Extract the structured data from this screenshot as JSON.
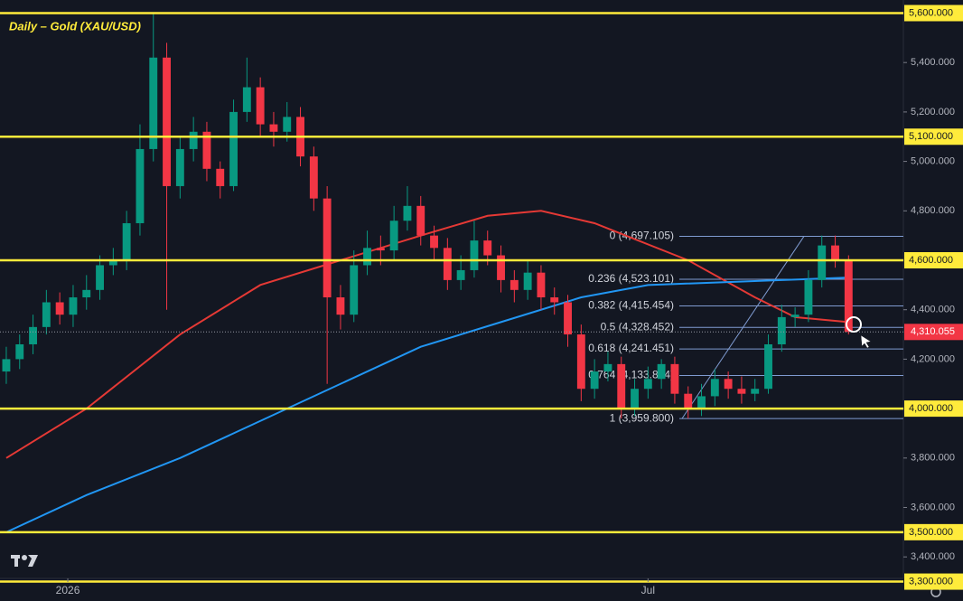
{
  "chart_data": {
    "type": "candlestick",
    "title": "Daily – Gold (XAU/USD)",
    "xlim": [
      -0.47,
      67.1
    ],
    "xticks": [
      {
        "value": 4.6,
        "label": "2026"
      },
      {
        "value": 48,
        "label": "Jul"
      }
    ],
    "ylim": [
      3313,
      5653
    ],
    "yticks": [
      {
        "value": 5400,
        "label": "5,400.000"
      },
      {
        "value": 5200,
        "label": "5,200.000"
      },
      {
        "value": 5000,
        "label": "5,000.000"
      },
      {
        "value": 4800,
        "label": "4,800.000"
      },
      {
        "value": 4400,
        "label": "4,400.000"
      },
      {
        "value": 4200,
        "label": "4,200.000"
      },
      {
        "value": 3800,
        "label": "3,800.000"
      },
      {
        "value": 3600,
        "label": "3,600.000"
      },
      {
        "value": 3400,
        "label": "3,400.000"
      }
    ],
    "up_color": "#089981",
    "down_color": "#f23645",
    "open": [
      4150,
      4200,
      4260,
      4330,
      4430,
      4380,
      4450,
      4480,
      4580,
      4600,
      4750,
      5050,
      5420,
      4900,
      5050,
      5120,
      4970,
      4900,
      5200,
      5300,
      5150,
      5120,
      5180,
      5020,
      4850,
      4450,
      4380,
      4580,
      4650,
      4640,
      4760,
      4820,
      4700,
      4650,
      4520,
      4560,
      4680,
      4620,
      4520,
      4480,
      4550,
      4450,
      4430,
      4300,
      4080,
      4150,
      4180,
      4000,
      4080,
      4120,
      4180,
      4060,
      4000,
      4050,
      4120,
      4080,
      4060,
      4080,
      4260,
      4370,
      4380,
      4520,
      4660,
      4600
    ],
    "high": [
      4250,
      4300,
      4380,
      4480,
      4470,
      4500,
      4540,
      4620,
      4650,
      4800,
      5150,
      5600,
      5480,
      5100,
      5180,
      5160,
      5000,
      5250,
      5420,
      5340,
      5200,
      5240,
      5220,
      5060,
      4900,
      4500,
      4640,
      4720,
      4700,
      4820,
      4900,
      4860,
      4740,
      4690,
      4620,
      4760,
      4720,
      4660,
      4560,
      4600,
      4580,
      4490,
      4460,
      4340,
      4200,
      4230,
      4210,
      4120,
      4170,
      4200,
      4210,
      4090,
      4100,
      4160,
      4150,
      4130,
      4120,
      4300,
      4420,
      4410,
      4560,
      4700,
      4700,
      4620
    ],
    "low": [
      4100,
      4160,
      4220,
      4300,
      4340,
      4330,
      4400,
      4440,
      4540,
      4560,
      4700,
      5000,
      4400,
      4850,
      5000,
      4920,
      4850,
      4880,
      5160,
      5100,
      5060,
      5080,
      4980,
      4800,
      4100,
      4320,
      4350,
      4540,
      4580,
      4600,
      4720,
      4660,
      4600,
      4480,
      4480,
      4530,
      4580,
      4470,
      4430,
      4440,
      4400,
      4380,
      4250,
      4030,
      4040,
      4110,
      3960,
      3970,
      4040,
      4080,
      4020,
      3960,
      3970,
      4010,
      4040,
      4020,
      4030,
      4060,
      4230,
      4330,
      4350,
      4490,
      4570,
      4300
    ],
    "close": [
      4200,
      4260,
      4330,
      4430,
      4380,
      4450,
      4480,
      4580,
      4600,
      4750,
      5050,
      5420,
      4900,
      5050,
      5120,
      4970,
      4900,
      5200,
      5300,
      5150,
      5120,
      5180,
      5020,
      4850,
      4450,
      4380,
      4580,
      4650,
      4640,
      4760,
      4820,
      4700,
      4650,
      4520,
      4560,
      4680,
      4620,
      4520,
      4480,
      4550,
      4450,
      4430,
      4300,
      4080,
      4150,
      4180,
      4000,
      4080,
      4120,
      4180,
      4060,
      4000,
      4050,
      4120,
      4080,
      4060,
      4080,
      4260,
      4370,
      4380,
      4520,
      4660,
      4600,
      4310
    ],
    "series": [
      {
        "color": "#e53935",
        "x": [
          0,
          6,
          13,
          19,
          25,
          31,
          36,
          40,
          44,
          51,
          56,
          59,
          63
        ],
        "values": [
          3800,
          4000,
          4300,
          4500,
          4600,
          4700,
          4780,
          4800,
          4750,
          4600,
          4450,
          4370,
          4350
        ]
      },
      {
        "color": "#2196f3",
        "x": [
          0,
          6,
          13,
          21,
          25,
          31,
          37,
          43,
          48,
          58,
          63
        ],
        "values": [
          3500,
          3650,
          3800,
          4000,
          4100,
          4250,
          4350,
          4450,
          4500,
          4520,
          4530
        ]
      }
    ],
    "levels_color": "#ffeb3b",
    "levels": [
      {
        "value": 5600,
        "label": "5,600.000"
      },
      {
        "value": 5100,
        "label": "5,100.000"
      },
      {
        "value": 4600,
        "label": "4,600.000"
      },
      {
        "value": 4000,
        "label": "4,000.000"
      },
      {
        "value": 3500,
        "label": "3,500.000"
      },
      {
        "value": 3300,
        "label": "3,300.000"
      }
    ],
    "fib_color": "#7f9bd1",
    "fib": [
      {
        "price": 4697.105,
        "label": "0 (4,697.105)"
      },
      {
        "price": 4523.101,
        "label": "0.236 (4,523.101)"
      },
      {
        "price": 4415.454,
        "label": "0.382 (4,415.454)"
      },
      {
        "price": 4328.452,
        "label": "0.5 (4,328.452)"
      },
      {
        "price": 4241.451,
        "label": "0.618 (4,241.451)"
      },
      {
        "price": 4133.804,
        "label": "0.764 (4,133.804)"
      },
      {
        "price": 3959.8,
        "label": "1 (3,959.800)"
      }
    ],
    "last_price": {
      "value": 4310.055,
      "label": "4,310.055",
      "color": "#f23645"
    }
  }
}
